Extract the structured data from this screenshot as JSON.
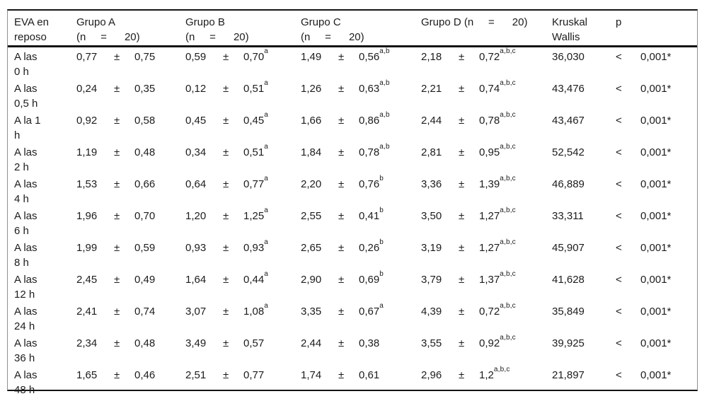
{
  "table": {
    "symbols": {
      "plus_minus": "±"
    },
    "header": {
      "eva": [
        "EVA en",
        "reposo"
      ],
      "grupo_a": [
        "Grupo A",
        "(n     =      20)"
      ],
      "grupo_b": [
        "Grupo B",
        "(n     =      20)"
      ],
      "grupo_c": [
        "Grupo C",
        "(n     =      20)"
      ],
      "grupo_d": [
        "Grupo D (n     =      20)"
      ],
      "kruskal": [
        "Kruskal",
        "Wallis"
      ],
      "p": "p"
    },
    "rows": [
      {
        "time": [
          "A las",
          "0 h"
        ],
        "groups": [
          {
            "mean": "0,77",
            "sd": "0,75",
            "sup": ""
          },
          {
            "mean": "0,59",
            "sd": "0,70",
            "sup": "a"
          },
          {
            "mean": "1,49",
            "sd": "0,56",
            "sup": "a,b"
          },
          {
            "mean": "2,18",
            "sd": "0,72",
            "sup": "a,b,c"
          }
        ],
        "kruskal": "36,030",
        "p_lt": "<",
        "p": "0,001*"
      },
      {
        "time": [
          "A las",
          "0,5 h"
        ],
        "groups": [
          {
            "mean": "0,24",
            "sd": "0,35",
            "sup": ""
          },
          {
            "mean": "0,12",
            "sd": "0,51",
            "sup": "a"
          },
          {
            "mean": "1,26",
            "sd": "0,63",
            "sup": "a,b"
          },
          {
            "mean": "2,21",
            "sd": "0,74",
            "sup": "a,b,c"
          }
        ],
        "kruskal": "43,476",
        "p_lt": "<",
        "p": "0,001*"
      },
      {
        "time": [
          "A la 1",
          "h"
        ],
        "groups": [
          {
            "mean": "0,92",
            "sd": "0,58",
            "sup": ""
          },
          {
            "mean": "0,45",
            "sd": "0,45",
            "sup": "a"
          },
          {
            "mean": "1,66",
            "sd": "0,86",
            "sup": "a,b"
          },
          {
            "mean": "2,44",
            "sd": "0,78",
            "sup": "a,b,c"
          }
        ],
        "kruskal": "43,467",
        "p_lt": "<",
        "p": "0,001*"
      },
      {
        "time": [
          "A las",
          "2 h"
        ],
        "groups": [
          {
            "mean": "1,19",
            "sd": "0,48",
            "sup": ""
          },
          {
            "mean": "0,34",
            "sd": "0,51",
            "sup": "a"
          },
          {
            "mean": "1,84",
            "sd": "0,78",
            "sup": "a,b"
          },
          {
            "mean": "2,81",
            "sd": "0,95",
            "sup": "a,b,c"
          }
        ],
        "kruskal": "52,542",
        "p_lt": "<",
        "p": "0,001*"
      },
      {
        "time": [
          "A las",
          "4 h"
        ],
        "groups": [
          {
            "mean": "1,53",
            "sd": "0,66",
            "sup": ""
          },
          {
            "mean": "0,64",
            "sd": "0,77",
            "sup": "a"
          },
          {
            "mean": "2,20",
            "sd": "0,76",
            "sup": "b"
          },
          {
            "mean": "3,36",
            "sd": "1,39",
            "sup": "a,b,c"
          }
        ],
        "kruskal": "46,889",
        "p_lt": "<",
        "p": "0,001*"
      },
      {
        "time": [
          "A las",
          "6 h"
        ],
        "groups": [
          {
            "mean": "1,96",
            "sd": "0,70",
            "sup": ""
          },
          {
            "mean": "1,20",
            "sd": "1,25",
            "sup": "a"
          },
          {
            "mean": "2,55",
            "sd": "0,41",
            "sup": "b"
          },
          {
            "mean": "3,50",
            "sd": "1,27",
            "sup": "a,b,c"
          }
        ],
        "kruskal": "33,311",
        "p_lt": "<",
        "p": "0,001*"
      },
      {
        "time": [
          "A las",
          "8 h"
        ],
        "groups": [
          {
            "mean": "1,99",
            "sd": "0,59",
            "sup": ""
          },
          {
            "mean": "0,93",
            "sd": "0,93",
            "sup": "a"
          },
          {
            "mean": "2,65",
            "sd": "0,26",
            "sup": "b"
          },
          {
            "mean": "3,19",
            "sd": "1,27",
            "sup": "a,b,c"
          }
        ],
        "kruskal": "45,907",
        "p_lt": "<",
        "p": "0,001*"
      },
      {
        "time": [
          "A las",
          "12 h"
        ],
        "groups": [
          {
            "mean": "2,45",
            "sd": "0,49",
            "sup": ""
          },
          {
            "mean": "1,64",
            "sd": "0,44",
            "sup": "a"
          },
          {
            "mean": "2,90",
            "sd": "0,69",
            "sup": "b"
          },
          {
            "mean": "3,79",
            "sd": "1,37",
            "sup": "a,b,c"
          }
        ],
        "kruskal": "41,628",
        "p_lt": "<",
        "p": "0,001*"
      },
      {
        "time": [
          "A las",
          "24 h"
        ],
        "groups": [
          {
            "mean": "2,41",
            "sd": "0,74",
            "sup": ""
          },
          {
            "mean": "3,07",
            "sd": "1,08",
            "sup": "a"
          },
          {
            "mean": "3,35",
            "sd": "0,67",
            "sup": "a"
          },
          {
            "mean": "4,39",
            "sd": "0,72",
            "sup": "a,b,c"
          }
        ],
        "kruskal": "35,849",
        "p_lt": "<",
        "p": "0,001*"
      },
      {
        "time": [
          "A las",
          "36 h"
        ],
        "groups": [
          {
            "mean": "2,34",
            "sd": "0,48",
            "sup": ""
          },
          {
            "mean": "3,49",
            "sd": "0,57",
            "sup": ""
          },
          {
            "mean": "2,44",
            "sd": "0,38",
            "sup": ""
          },
          {
            "mean": "3,55",
            "sd": "0,92",
            "sup": "a,b,c"
          }
        ],
        "kruskal": "39,925",
        "p_lt": "<",
        "p": "0,001*"
      },
      {
        "time": [
          "A las",
          "48 h"
        ],
        "groups": [
          {
            "mean": "1,65",
            "sd": "0,46",
            "sup": ""
          },
          {
            "mean": "2,51",
            "sd": "0,77",
            "sup": ""
          },
          {
            "mean": "1,74",
            "sd": "0,61",
            "sup": ""
          },
          {
            "mean": "2,96",
            "sd": "1,2",
            "sup": "a,b,c"
          }
        ],
        "kruskal": "21,897",
        "p_lt": "<",
        "p": "0,001*"
      }
    ]
  }
}
